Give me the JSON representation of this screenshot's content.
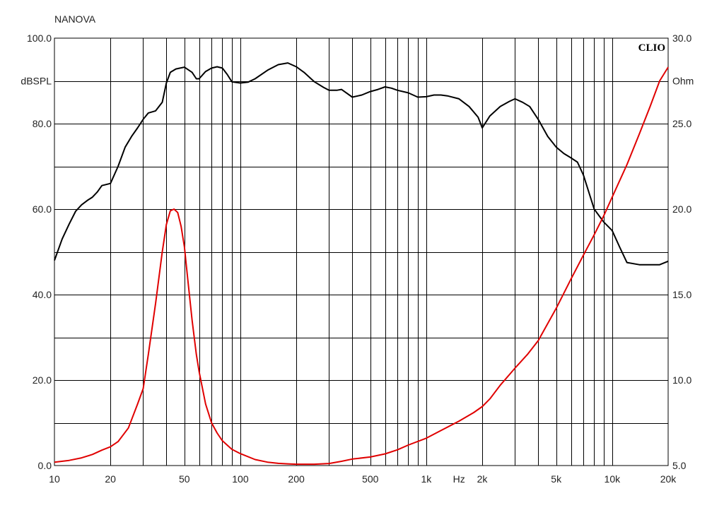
{
  "chart_data": {
    "type": "line",
    "title": "NANOVA",
    "brand": "CLIO",
    "x_scale": "log",
    "xlim": [
      10,
      20000
    ],
    "x_unit_label": "Hz",
    "x_ticks": [
      {
        "value": 10,
        "label": "10"
      },
      {
        "value": 20,
        "label": "20"
      },
      {
        "value": 50,
        "label": "50"
      },
      {
        "value": 100,
        "label": "100"
      },
      {
        "value": 200,
        "label": "200"
      },
      {
        "value": 500,
        "label": "500"
      },
      {
        "value": 1000,
        "label": "1k"
      },
      {
        "value": 2000,
        "label": "2k"
      },
      {
        "value": 5000,
        "label": "5k"
      },
      {
        "value": 10000,
        "label": "10k"
      },
      {
        "value": 20000,
        "label": "20k"
      }
    ],
    "x_unit_at": 1500,
    "y_left": {
      "label": "dBSPL",
      "label_at": 90,
      "lim": [
        0,
        100
      ],
      "ticks": [
        {
          "value": 0,
          "label": "0.0"
        },
        {
          "value": 20,
          "label": "20.0"
        },
        {
          "value": 40,
          "label": "40.0"
        },
        {
          "value": 60,
          "label": "60.0"
        },
        {
          "value": 80,
          "label": "80.0"
        },
        {
          "value": 100,
          "label": "100.0"
        }
      ]
    },
    "y_right": {
      "label": "Ohm",
      "label_at": 27.5,
      "lim": [
        5,
        30
      ],
      "ticks": [
        {
          "value": 5,
          "label": "5.0"
        },
        {
          "value": 10,
          "label": "10.0"
        },
        {
          "value": 15,
          "label": "15.0"
        },
        {
          "value": 20,
          "label": "20.0"
        },
        {
          "value": 25,
          "label": "25.0"
        },
        {
          "value": 30,
          "label": "30.0"
        }
      ]
    },
    "grid": true,
    "series": [
      {
        "axis": "left",
        "color": "#000000",
        "x": [
          10,
          11,
          12,
          13,
          14,
          15,
          16,
          17,
          18,
          20,
          22,
          24,
          26,
          28,
          30,
          32,
          35,
          38,
          40,
          42,
          45,
          50,
          55,
          58,
          60,
          65,
          70,
          75,
          80,
          85,
          90,
          100,
          110,
          120,
          140,
          160,
          180,
          200,
          220,
          250,
          280,
          300,
          330,
          350,
          400,
          450,
          500,
          550,
          600,
          650,
          700,
          800,
          900,
          1000,
          1100,
          1200,
          1300,
          1500,
          1700,
          1900,
          2000,
          2200,
          2500,
          2800,
          3000,
          3300,
          3600,
          4000,
          4500,
          5000,
          5500,
          6000,
          6500,
          7000,
          8000,
          9000,
          10000,
          11000,
          12000,
          14000,
          16000,
          18000,
          20000
        ],
        "values": [
          48,
          53,
          56.5,
          59.5,
          61,
          62,
          62.8,
          64,
          65.5,
          66,
          70,
          74.5,
          77,
          79,
          81,
          82.5,
          83,
          85,
          89.5,
          92,
          92.8,
          93.2,
          92,
          90.5,
          90.5,
          92.2,
          93,
          93.3,
          93,
          91.5,
          89.8,
          89.5,
          89.7,
          90.5,
          92.5,
          93.8,
          94.2,
          93.3,
          92,
          89.8,
          88.5,
          87.8,
          87.8,
          88,
          86.2,
          86.7,
          87.5,
          88,
          88.6,
          88.3,
          87.8,
          87.2,
          86.2,
          86.3,
          86.7,
          86.7,
          86.5,
          85.8,
          84,
          81.5,
          79,
          81.8,
          84,
          85.2,
          85.8,
          85,
          84,
          81,
          77,
          74.5,
          73,
          72,
          71,
          68,
          60,
          57,
          55,
          51,
          47.5,
          47,
          47,
          47,
          47.8
        ]
      },
      {
        "axis": "right",
        "color": "#e00000",
        "x": [
          10,
          12,
          14,
          16,
          18,
          20,
          22,
          25,
          28,
          30,
          32,
          35,
          38,
          40,
          42,
          44,
          46,
          48,
          50,
          52,
          55,
          58,
          60,
          65,
          70,
          75,
          80,
          90,
          100,
          120,
          140,
          160,
          180,
          200,
          250,
          300,
          350,
          400,
          500,
          600,
          700,
          800,
          1000,
          1200,
          1500,
          1800,
          2000,
          2200,
          2500,
          3000,
          3500,
          4000,
          5000,
          6000,
          7000,
          8000,
          9000,
          10000,
          12000,
          14000,
          16000,
          18000,
          20000
        ],
        "values": [
          5.2,
          5.3,
          5.45,
          5.65,
          5.9,
          6.1,
          6.4,
          7.2,
          8.6,
          9.5,
          11.5,
          14.5,
          17.5,
          19.1,
          19.9,
          20,
          19.8,
          19,
          17.8,
          16,
          13.5,
          11.5,
          10.5,
          8.6,
          7.5,
          6.9,
          6.45,
          5.95,
          5.7,
          5.35,
          5.2,
          5.13,
          5.1,
          5.08,
          5.08,
          5.12,
          5.25,
          5.38,
          5.5,
          5.68,
          5.92,
          6.2,
          6.6,
          7.05,
          7.6,
          8.1,
          8.45,
          8.9,
          9.7,
          10.7,
          11.5,
          12.3,
          14.2,
          15.9,
          17.3,
          18.5,
          19.6,
          20.7,
          22.6,
          24.4,
          26,
          27.5,
          28.3
        ]
      }
    ]
  }
}
